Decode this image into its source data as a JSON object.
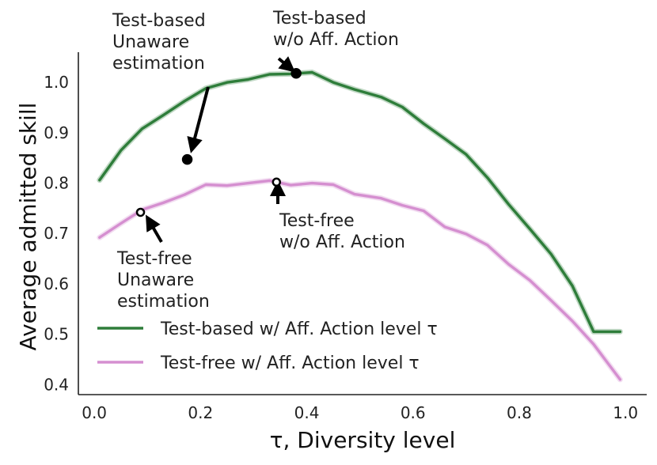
{
  "chart_data": {
    "type": "line",
    "xlabel": "τ, Diversity level",
    "ylabel": "Average admitted skill",
    "xlim": [
      -0.03,
      1.04
    ],
    "ylim": [
      0.38,
      1.06
    ],
    "xticks": [
      0.0,
      0.2,
      0.4,
      0.6,
      0.8,
      1.0
    ],
    "xtick_labels": [
      "0.0",
      "0.2",
      "0.4",
      "0.6",
      "0.8",
      "1.0"
    ],
    "yticks": [
      0.4,
      0.5,
      0.6,
      0.7,
      0.8,
      0.9,
      1.0
    ],
    "ytick_labels": [
      "0.4",
      "0.5",
      "0.6",
      "0.7",
      "0.8",
      "0.9",
      "1.0"
    ],
    "grid": false,
    "legend_position": "lower-left",
    "series": [
      {
        "name": "Test-based w/ Aff. Action level τ",
        "color": "#2e7d3a",
        "x": [
          0.01,
          0.05,
          0.09,
          0.13,
          0.17,
          0.21,
          0.25,
          0.29,
          0.33,
          0.37,
          0.41,
          0.45,
          0.49,
          0.54,
          0.58,
          0.62,
          0.66,
          0.7,
          0.74,
          0.78,
          0.82,
          0.86,
          0.9,
          0.94,
          0.99
        ],
        "values": [
          0.806,
          0.865,
          0.908,
          0.935,
          0.963,
          0.988,
          1.0,
          1.006,
          1.016,
          1.017,
          1.02,
          1.0,
          0.986,
          0.971,
          0.951,
          0.918,
          0.888,
          0.857,
          0.811,
          0.758,
          0.709,
          0.659,
          0.596,
          0.505,
          0.505
        ]
      },
      {
        "name": "Test-free w/ Aff. Action level τ",
        "color": "#d58fd0",
        "x": [
          0.01,
          0.05,
          0.09,
          0.13,
          0.17,
          0.21,
          0.25,
          0.29,
          0.33,
          0.37,
          0.41,
          0.45,
          0.49,
          0.54,
          0.58,
          0.62,
          0.66,
          0.7,
          0.74,
          0.78,
          0.82,
          0.86,
          0.9,
          0.94,
          0.99
        ],
        "values": [
          0.692,
          0.72,
          0.747,
          0.761,
          0.777,
          0.797,
          0.795,
          0.8,
          0.805,
          0.796,
          0.8,
          0.797,
          0.778,
          0.77,
          0.756,
          0.745,
          0.713,
          0.699,
          0.677,
          0.639,
          0.607,
          0.567,
          0.526,
          0.48,
          0.41
        ]
      }
    ],
    "annotations": [
      {
        "name": "test-based-unaware",
        "lines": [
          "Test-based",
          "Unaware",
          "estimation"
        ],
        "point": [
          0.175,
          0.847
        ],
        "filled": true
      },
      {
        "name": "test-based-no-aa",
        "lines": [
          "Test-based",
          "w/o Aff. Action"
        ],
        "point": [
          0.38,
          1.018
        ],
        "filled": true
      },
      {
        "name": "test-free-no-aa",
        "lines": [
          "Test-free",
          "w/o Aff. Action"
        ],
        "point": [
          0.343,
          0.802
        ],
        "filled": false
      },
      {
        "name": "test-free-unaware",
        "lines": [
          "Test-free",
          "Unaware",
          "estimation"
        ],
        "point": [
          0.087,
          0.742
        ],
        "filled": false
      }
    ]
  }
}
